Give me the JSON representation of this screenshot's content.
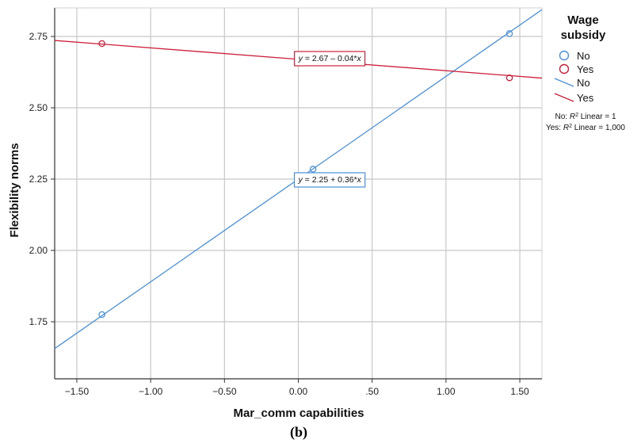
{
  "chart_data": {
    "type": "scatter",
    "xlabel": "Mar_comm capabilities",
    "ylabel": "Flexibility norms",
    "caption": "(b)",
    "xlim": [
      -1.65,
      1.65
    ],
    "ylim": [
      1.55,
      2.85
    ],
    "x_ticks": [
      -1.5,
      -1.0,
      -0.5,
      0.0,
      0.5,
      1.0,
      1.5
    ],
    "x_tick_labels": [
      "-1.50",
      "-1.00",
      "-0.50",
      "0.00",
      ".50",
      "1.00",
      "1.50"
    ],
    "y_ticks": [
      1.75,
      2.0,
      2.25,
      2.5,
      2.75
    ],
    "y_tick_labels": [
      "1.75",
      "2.00",
      "2.25",
      "2.50",
      "2.75"
    ],
    "grid": true,
    "legend": {
      "title_line1": "Wage",
      "title_line2": "subsidy",
      "position": "right",
      "marker_labels": [
        "No",
        "Yes"
      ],
      "line_labels": [
        "No",
        "Yes"
      ],
      "r2_no_prefix": "No: ",
      "r2_yes_prefix": "Yes: ",
      "r2_symbol": "R",
      "r2_exponent": "2",
      "r2_no_suffix": " Linear = 1",
      "r2_yes_suffix": " Linear = 1,000"
    },
    "series": [
      {
        "name": "No",
        "color": "#4a90d9",
        "points": [
          [
            -1.33,
            1.775
          ],
          [
            0.1,
            2.285
          ],
          [
            1.43,
            2.76
          ]
        ],
        "fit": {
          "intercept": 2.25,
          "slope": 0.36
        },
        "equation_prefix": "y",
        "equation_rest": " = 2.25 + 0.36*",
        "equation_var": "x",
        "equation_anchor": [
          -0.2,
          2.25
        ]
      },
      {
        "name": "Yes",
        "color": "#cc1f3a",
        "points": [
          [
            -1.33,
            2.725
          ],
          [
            1.43,
            2.605
          ]
        ],
        "fit": {
          "intercept": 2.67,
          "slope": -0.04
        },
        "equation_prefix": "y",
        "equation_rest": " = 2.67 – 0.04*",
        "equation_var": "x",
        "equation_anchor": [
          -0.2,
          2.675
        ]
      }
    ]
  }
}
